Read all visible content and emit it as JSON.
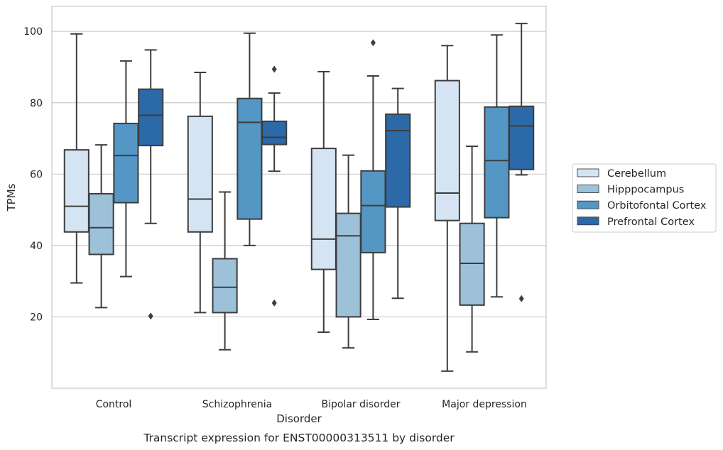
{
  "chart_data": {
    "type": "box",
    "title": "",
    "caption": "Transcript expression for ENST00000313511 by disorder",
    "xlabel": "Disorder",
    "ylabel": "TPMs",
    "ylim": [
      0,
      107
    ],
    "yticks": [
      20,
      40,
      60,
      80,
      100
    ],
    "grid": "horizontal",
    "legend_position": "right",
    "categories": [
      "Control",
      "Schizophrenia",
      "Bipolar disorder",
      "Major depression"
    ],
    "series": [
      {
        "name": "Cerebellum",
        "color": "#d5e4f2",
        "boxes": [
          {
            "whislo": 29.5,
            "q1": 43.8,
            "med": 51.0,
            "q3": 66.8,
            "whishi": 99.3,
            "fliers": []
          },
          {
            "whislo": 21.2,
            "q1": 43.8,
            "med": 53.0,
            "q3": 76.2,
            "whishi": 88.5,
            "fliers": []
          },
          {
            "whislo": 15.7,
            "q1": 33.3,
            "med": 41.8,
            "q3": 67.2,
            "whishi": 88.7,
            "fliers": []
          },
          {
            "whislo": 4.8,
            "q1": 47.0,
            "med": 54.7,
            "q3": 86.2,
            "whishi": 96.0,
            "fliers": []
          }
        ]
      },
      {
        "name": "Hipppocampus",
        "color": "#9dc1d9",
        "boxes": [
          {
            "whislo": 22.6,
            "q1": 37.5,
            "med": 45.0,
            "q3": 54.5,
            "whishi": 68.2,
            "fliers": []
          },
          {
            "whislo": 10.8,
            "q1": 21.2,
            "med": 28.3,
            "q3": 36.3,
            "whishi": 55.0,
            "fliers": []
          },
          {
            "whislo": 11.3,
            "q1": 20.0,
            "med": 42.7,
            "q3": 49.0,
            "whishi": 65.3,
            "fliers": []
          },
          {
            "whislo": 10.2,
            "q1": 23.3,
            "med": 35.0,
            "q3": 46.2,
            "whishi": 67.8,
            "fliers": []
          }
        ]
      },
      {
        "name": "Orbitofontal Cortex",
        "color": "#5496c4",
        "boxes": [
          {
            "whislo": 31.3,
            "q1": 52.0,
            "med": 65.2,
            "q3": 74.2,
            "whishi": 91.7,
            "fliers": []
          },
          {
            "whislo": 40.0,
            "q1": 47.4,
            "med": 74.5,
            "q3": 81.2,
            "whishi": 99.5,
            "fliers": []
          },
          {
            "whislo": 19.3,
            "q1": 38.0,
            "med": 51.2,
            "q3": 60.9,
            "whishi": 87.5,
            "fliers": [
              96.8
            ]
          },
          {
            "whislo": 25.6,
            "q1": 47.8,
            "med": 63.8,
            "q3": 78.8,
            "whishi": 99.0,
            "fliers": []
          }
        ]
      },
      {
        "name": "Prefrontal Cortex",
        "color": "#2b69a8",
        "boxes": [
          {
            "whislo": 46.2,
            "q1": 68.0,
            "med": 76.5,
            "q3": 83.8,
            "whishi": 94.8,
            "fliers": [
              20.2
            ]
          },
          {
            "whislo": 60.8,
            "q1": 68.3,
            "med": 70.3,
            "q3": 74.8,
            "whishi": 82.7,
            "fliers": [
              89.4,
              23.9
            ]
          },
          {
            "whislo": 25.2,
            "q1": 50.8,
            "med": 72.2,
            "q3": 76.8,
            "whishi": 84.0,
            "fliers": []
          },
          {
            "whislo": 59.8,
            "q1": 61.3,
            "med": 73.5,
            "q3": 79.0,
            "whishi": 102.2,
            "fliers": [
              25.1
            ]
          }
        ]
      }
    ]
  }
}
